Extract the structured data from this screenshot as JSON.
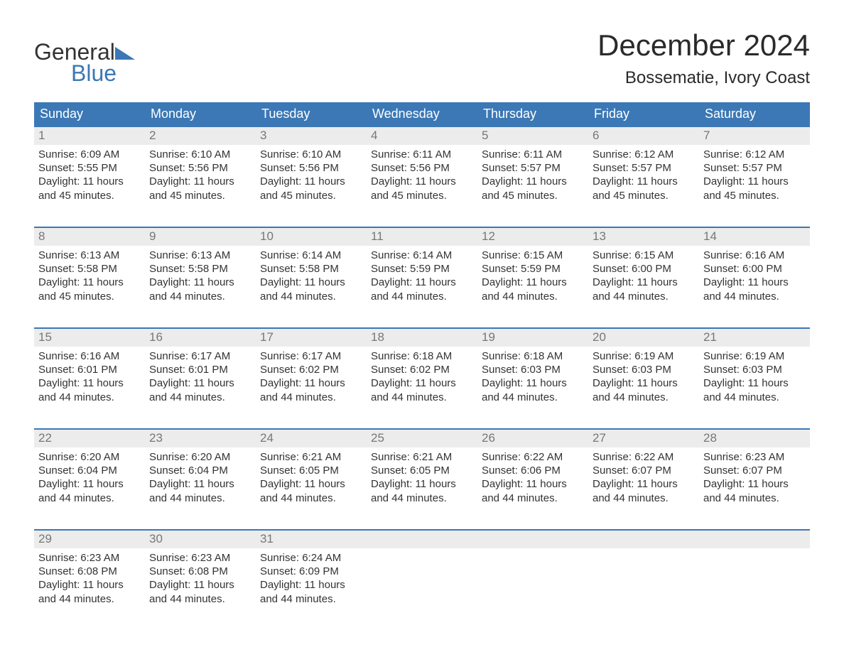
{
  "logo": {
    "line1": "General",
    "line2": "Blue"
  },
  "title": "December 2024",
  "location": "Bossematie, Ivory Coast",
  "colors": {
    "header_bg": "#3b78b5",
    "header_text": "#ffffff",
    "daynum_bg": "#ececec",
    "daynum_text": "#777777",
    "body_text": "#333333",
    "week_border": "#3b78b5",
    "logo_blue": "#3b78b5"
  },
  "day_labels": [
    "Sunday",
    "Monday",
    "Tuesday",
    "Wednesday",
    "Thursday",
    "Friday",
    "Saturday"
  ],
  "weeks": [
    [
      {
        "n": "1",
        "sunrise": "6:09 AM",
        "sunset": "5:55 PM",
        "dl1": "Daylight: 11 hours",
        "dl2": "and 45 minutes."
      },
      {
        "n": "2",
        "sunrise": "6:10 AM",
        "sunset": "5:56 PM",
        "dl1": "Daylight: 11 hours",
        "dl2": "and 45 minutes."
      },
      {
        "n": "3",
        "sunrise": "6:10 AM",
        "sunset": "5:56 PM",
        "dl1": "Daylight: 11 hours",
        "dl2": "and 45 minutes."
      },
      {
        "n": "4",
        "sunrise": "6:11 AM",
        "sunset": "5:56 PM",
        "dl1": "Daylight: 11 hours",
        "dl2": "and 45 minutes."
      },
      {
        "n": "5",
        "sunrise": "6:11 AM",
        "sunset": "5:57 PM",
        "dl1": "Daylight: 11 hours",
        "dl2": "and 45 minutes."
      },
      {
        "n": "6",
        "sunrise": "6:12 AM",
        "sunset": "5:57 PM",
        "dl1": "Daylight: 11 hours",
        "dl2": "and 45 minutes."
      },
      {
        "n": "7",
        "sunrise": "6:12 AM",
        "sunset": "5:57 PM",
        "dl1": "Daylight: 11 hours",
        "dl2": "and 45 minutes."
      }
    ],
    [
      {
        "n": "8",
        "sunrise": "6:13 AM",
        "sunset": "5:58 PM",
        "dl1": "Daylight: 11 hours",
        "dl2": "and 45 minutes."
      },
      {
        "n": "9",
        "sunrise": "6:13 AM",
        "sunset": "5:58 PM",
        "dl1": "Daylight: 11 hours",
        "dl2": "and 44 minutes."
      },
      {
        "n": "10",
        "sunrise": "6:14 AM",
        "sunset": "5:58 PM",
        "dl1": "Daylight: 11 hours",
        "dl2": "and 44 minutes."
      },
      {
        "n": "11",
        "sunrise": "6:14 AM",
        "sunset": "5:59 PM",
        "dl1": "Daylight: 11 hours",
        "dl2": "and 44 minutes."
      },
      {
        "n": "12",
        "sunrise": "6:15 AM",
        "sunset": "5:59 PM",
        "dl1": "Daylight: 11 hours",
        "dl2": "and 44 minutes."
      },
      {
        "n": "13",
        "sunrise": "6:15 AM",
        "sunset": "6:00 PM",
        "dl1": "Daylight: 11 hours",
        "dl2": "and 44 minutes."
      },
      {
        "n": "14",
        "sunrise": "6:16 AM",
        "sunset": "6:00 PM",
        "dl1": "Daylight: 11 hours",
        "dl2": "and 44 minutes."
      }
    ],
    [
      {
        "n": "15",
        "sunrise": "6:16 AM",
        "sunset": "6:01 PM",
        "dl1": "Daylight: 11 hours",
        "dl2": "and 44 minutes."
      },
      {
        "n": "16",
        "sunrise": "6:17 AM",
        "sunset": "6:01 PM",
        "dl1": "Daylight: 11 hours",
        "dl2": "and 44 minutes."
      },
      {
        "n": "17",
        "sunrise": "6:17 AM",
        "sunset": "6:02 PM",
        "dl1": "Daylight: 11 hours",
        "dl2": "and 44 minutes."
      },
      {
        "n": "18",
        "sunrise": "6:18 AM",
        "sunset": "6:02 PM",
        "dl1": "Daylight: 11 hours",
        "dl2": "and 44 minutes."
      },
      {
        "n": "19",
        "sunrise": "6:18 AM",
        "sunset": "6:03 PM",
        "dl1": "Daylight: 11 hours",
        "dl2": "and 44 minutes."
      },
      {
        "n": "20",
        "sunrise": "6:19 AM",
        "sunset": "6:03 PM",
        "dl1": "Daylight: 11 hours",
        "dl2": "and 44 minutes."
      },
      {
        "n": "21",
        "sunrise": "6:19 AM",
        "sunset": "6:03 PM",
        "dl1": "Daylight: 11 hours",
        "dl2": "and 44 minutes."
      }
    ],
    [
      {
        "n": "22",
        "sunrise": "6:20 AM",
        "sunset": "6:04 PM",
        "dl1": "Daylight: 11 hours",
        "dl2": "and 44 minutes."
      },
      {
        "n": "23",
        "sunrise": "6:20 AM",
        "sunset": "6:04 PM",
        "dl1": "Daylight: 11 hours",
        "dl2": "and 44 minutes."
      },
      {
        "n": "24",
        "sunrise": "6:21 AM",
        "sunset": "6:05 PM",
        "dl1": "Daylight: 11 hours",
        "dl2": "and 44 minutes."
      },
      {
        "n": "25",
        "sunrise": "6:21 AM",
        "sunset": "6:05 PM",
        "dl1": "Daylight: 11 hours",
        "dl2": "and 44 minutes."
      },
      {
        "n": "26",
        "sunrise": "6:22 AM",
        "sunset": "6:06 PM",
        "dl1": "Daylight: 11 hours",
        "dl2": "and 44 minutes."
      },
      {
        "n": "27",
        "sunrise": "6:22 AM",
        "sunset": "6:07 PM",
        "dl1": "Daylight: 11 hours",
        "dl2": "and 44 minutes."
      },
      {
        "n": "28",
        "sunrise": "6:23 AM",
        "sunset": "6:07 PM",
        "dl1": "Daylight: 11 hours",
        "dl2": "and 44 minutes."
      }
    ],
    [
      {
        "n": "29",
        "sunrise": "6:23 AM",
        "sunset": "6:08 PM",
        "dl1": "Daylight: 11 hours",
        "dl2": "and 44 minutes."
      },
      {
        "n": "30",
        "sunrise": "6:23 AM",
        "sunset": "6:08 PM",
        "dl1": "Daylight: 11 hours",
        "dl2": "and 44 minutes."
      },
      {
        "n": "31",
        "sunrise": "6:24 AM",
        "sunset": "6:09 PM",
        "dl1": "Daylight: 11 hours",
        "dl2": "and 44 minutes."
      },
      null,
      null,
      null,
      null
    ]
  ],
  "labels": {
    "sunrise_prefix": "Sunrise: ",
    "sunset_prefix": "Sunset: "
  }
}
